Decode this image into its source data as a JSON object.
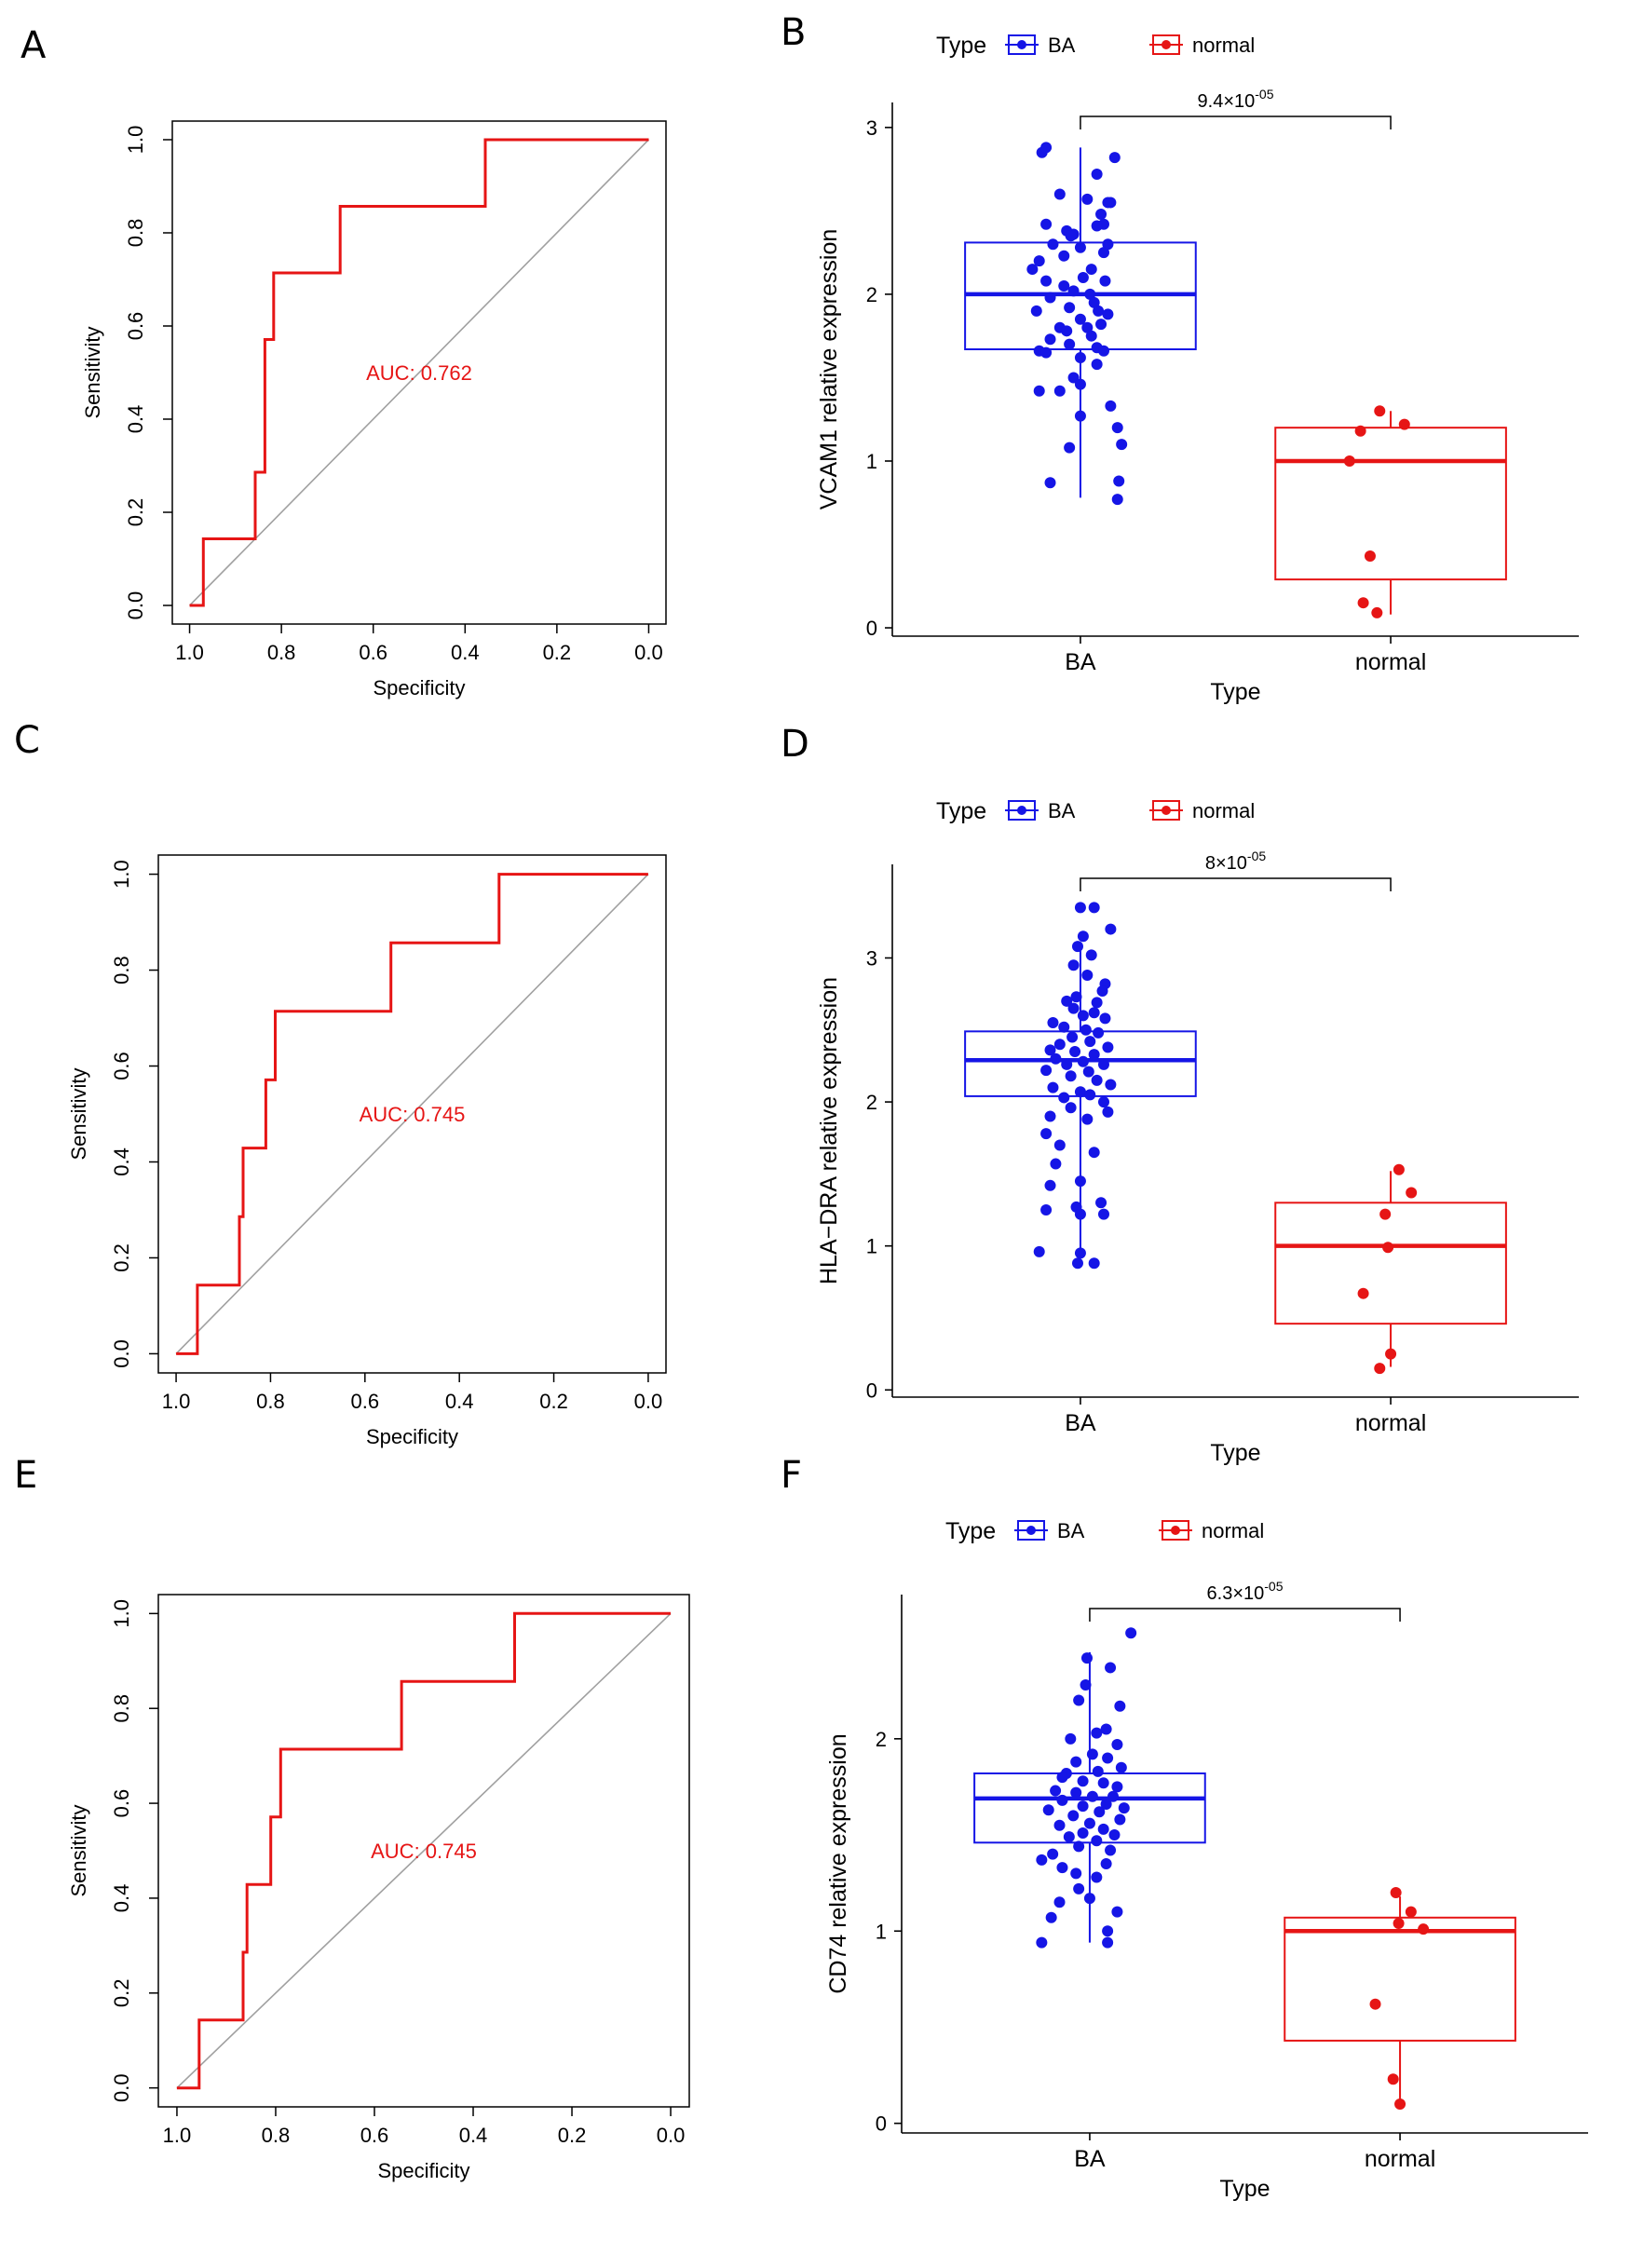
{
  "panels": [
    {
      "letter": "A"
    },
    {
      "letter": "B"
    },
    {
      "letter": "C"
    },
    {
      "letter": "D"
    },
    {
      "letter": "E"
    },
    {
      "letter": "F"
    }
  ],
  "colors": {
    "ba": "#1515e6",
    "normal": "#e61515",
    "roc": "#e61515",
    "diag": "#a0a0a0"
  },
  "chart_data": [
    {
      "panel": "A",
      "type": "line",
      "subtype": "roc",
      "xlabel": "Specificity",
      "ylabel": "Sensitivity",
      "xlim": [
        1.0,
        0.0
      ],
      "ylim": [
        0.0,
        1.0
      ],
      "xticks": [
        "1.0",
        "0.8",
        "0.6",
        "0.4",
        "0.2",
        "0.0"
      ],
      "yticks": [
        "0.0",
        "0.2",
        "0.4",
        "0.6",
        "0.8",
        "1.0"
      ],
      "auc_label": "AUC: 0.762",
      "roc": [
        [
          1.0,
          0.0
        ],
        [
          0.97,
          0.0
        ],
        [
          0.97,
          0.143
        ],
        [
          0.857,
          0.143
        ],
        [
          0.857,
          0.286
        ],
        [
          0.836,
          0.286
        ],
        [
          0.836,
          0.571
        ],
        [
          0.817,
          0.571
        ],
        [
          0.817,
          0.714
        ],
        [
          0.672,
          0.714
        ],
        [
          0.672,
          0.857
        ],
        [
          0.356,
          0.857
        ],
        [
          0.356,
          1.0
        ],
        [
          0.0,
          1.0
        ]
      ]
    },
    {
      "panel": "B",
      "type": "box",
      "subtype": "boxplot-jitter",
      "legend_title": "Type",
      "legend": [
        "BA",
        "normal"
      ],
      "categories": [
        "BA",
        "normal"
      ],
      "xlabel": "Type",
      "ylabel": "VCAM1 relative expression",
      "ylim": [
        -0.05,
        3.15
      ],
      "yticks": [
        "0",
        "1",
        "2",
        "3"
      ],
      "pvalue_label": "9.4×10",
      "pvalue_exp": "-05",
      "boxes": [
        {
          "q1": 1.67,
          "median": 2.0,
          "q3": 2.31,
          "wlo": 0.78,
          "whi": 2.88
        },
        {
          "q1": 0.29,
          "median": 1.0,
          "q3": 1.2,
          "wlo": 0.08,
          "whi": 1.3
        }
      ],
      "points": [
        [
          [
            -0.28,
            2.85
          ],
          [
            -0.25,
            2.88
          ],
          [
            0.12,
            2.72
          ],
          [
            0.25,
            2.82
          ],
          [
            -0.15,
            2.6
          ],
          [
            0.05,
            2.57
          ],
          [
            0.22,
            2.55
          ],
          [
            0.2,
            2.55
          ],
          [
            0.15,
            2.48
          ],
          [
            -0.25,
            2.42
          ],
          [
            0.17,
            2.42
          ],
          [
            0.12,
            2.41
          ],
          [
            -0.1,
            2.38
          ],
          [
            -0.05,
            2.36
          ],
          [
            -0.07,
            2.35
          ],
          [
            0.2,
            2.3
          ],
          [
            -0.2,
            2.3
          ],
          [
            0.0,
            2.28
          ],
          [
            0.17,
            2.25
          ],
          [
            -0.12,
            2.23
          ],
          [
            -0.3,
            2.2
          ],
          [
            0.08,
            2.15
          ],
          [
            -0.35,
            2.15
          ],
          [
            0.02,
            2.1
          ],
          [
            0.18,
            2.08
          ],
          [
            -0.25,
            2.08
          ],
          [
            -0.12,
            2.05
          ],
          [
            -0.05,
            2.02
          ],
          [
            0.07,
            2.0
          ],
          [
            -0.22,
            1.98
          ],
          [
            0.1,
            1.95
          ],
          [
            -0.08,
            1.92
          ],
          [
            0.13,
            1.9
          ],
          [
            -0.32,
            1.9
          ],
          [
            0.2,
            1.88
          ],
          [
            0.0,
            1.85
          ],
          [
            0.15,
            1.82
          ],
          [
            -0.15,
            1.8
          ],
          [
            0.05,
            1.8
          ],
          [
            -0.1,
            1.78
          ],
          [
            0.08,
            1.75
          ],
          [
            -0.22,
            1.73
          ],
          [
            -0.08,
            1.7
          ],
          [
            0.12,
            1.68
          ],
          [
            -0.3,
            1.66
          ],
          [
            0.17,
            1.66
          ],
          [
            -0.25,
            1.65
          ],
          [
            0.0,
            1.62
          ],
          [
            0.12,
            1.58
          ],
          [
            -0.05,
            1.5
          ],
          [
            0.0,
            1.46
          ],
          [
            -0.3,
            1.42
          ],
          [
            -0.15,
            1.42
          ],
          [
            0.22,
            1.33
          ],
          [
            0.27,
            1.2
          ],
          [
            0.0,
            1.27
          ],
          [
            0.3,
            1.1
          ],
          [
            -0.08,
            1.08
          ],
          [
            0.28,
            0.88
          ],
          [
            -0.22,
            0.87
          ],
          [
            0.27,
            0.77
          ]
        ],
        [
          [
            -0.08,
            1.3
          ],
          [
            -0.22,
            1.18
          ],
          [
            0.1,
            1.22
          ],
          [
            -0.3,
            1.0
          ],
          [
            -0.15,
            0.43
          ],
          [
            -0.2,
            0.15
          ],
          [
            -0.1,
            0.09
          ]
        ]
      ]
    },
    {
      "panel": "C",
      "type": "line",
      "subtype": "roc",
      "xlabel": "Specificity",
      "ylabel": "Sensitivity",
      "xlim": [
        1.0,
        0.0
      ],
      "ylim": [
        0.0,
        1.0
      ],
      "xticks": [
        "1.0",
        "0.8",
        "0.6",
        "0.4",
        "0.2",
        "0.0"
      ],
      "yticks": [
        "0.0",
        "0.2",
        "0.4",
        "0.6",
        "0.8",
        "1.0"
      ],
      "auc_label": "AUC: 0.745",
      "roc": [
        [
          1.0,
          0.0
        ],
        [
          0.955,
          0.0
        ],
        [
          0.955,
          0.143
        ],
        [
          0.866,
          0.143
        ],
        [
          0.866,
          0.286
        ],
        [
          0.858,
          0.286
        ],
        [
          0.858,
          0.429
        ],
        [
          0.81,
          0.429
        ],
        [
          0.81,
          0.571
        ],
        [
          0.79,
          0.571
        ],
        [
          0.79,
          0.714
        ],
        [
          0.545,
          0.714
        ],
        [
          0.545,
          0.857
        ],
        [
          0.316,
          0.857
        ],
        [
          0.316,
          1.0
        ],
        [
          0.0,
          1.0
        ]
      ]
    },
    {
      "panel": "D",
      "type": "box",
      "subtype": "boxplot-jitter",
      "legend_title": "Type",
      "legend": [
        "BA",
        "normal"
      ],
      "categories": [
        "BA",
        "normal"
      ],
      "xlabel": "Type",
      "ylabel": "HLA−DRA relative expression",
      "ylim": [
        -0.05,
        3.65
      ],
      "yticks": [
        "0",
        "1",
        "2",
        "3"
      ],
      "pvalue_label": "8×10",
      "pvalue_exp": "-05",
      "boxes": [
        {
          "q1": 2.04,
          "median": 2.29,
          "q3": 2.49,
          "wlo": 0.92,
          "whi": 3.1
        },
        {
          "q1": 0.46,
          "median": 1.0,
          "q3": 1.3,
          "wlo": 0.16,
          "whi": 1.52
        }
      ],
      "points": [
        [
          [
            0.0,
            3.35
          ],
          [
            0.1,
            3.35
          ],
          [
            0.22,
            3.2
          ],
          [
            0.02,
            3.15
          ],
          [
            -0.02,
            3.08
          ],
          [
            0.08,
            3.02
          ],
          [
            -0.05,
            2.95
          ],
          [
            0.05,
            2.88
          ],
          [
            0.18,
            2.82
          ],
          [
            0.16,
            2.77
          ],
          [
            -0.03,
            2.73
          ],
          [
            0.12,
            2.69
          ],
          [
            -0.1,
            2.7
          ],
          [
            -0.05,
            2.65
          ],
          [
            0.1,
            2.62
          ],
          [
            0.02,
            2.6
          ],
          [
            0.18,
            2.58
          ],
          [
            -0.2,
            2.55
          ],
          [
            -0.12,
            2.52
          ],
          [
            0.04,
            2.5
          ],
          [
            0.13,
            2.48
          ],
          [
            -0.06,
            2.45
          ],
          [
            0.07,
            2.42
          ],
          [
            -0.15,
            2.4
          ],
          [
            0.2,
            2.38
          ],
          [
            -0.22,
            2.36
          ],
          [
            -0.04,
            2.35
          ],
          [
            0.1,
            2.33
          ],
          [
            -0.18,
            2.3
          ],
          [
            0.02,
            2.28
          ],
          [
            0.17,
            2.26
          ],
          [
            -0.1,
            2.26
          ],
          [
            -0.25,
            2.22
          ],
          [
            0.06,
            2.21
          ],
          [
            -0.07,
            2.18
          ],
          [
            0.12,
            2.15
          ],
          [
            0.22,
            2.12
          ],
          [
            -0.2,
            2.1
          ],
          [
            0.0,
            2.07
          ],
          [
            0.07,
            2.05
          ],
          [
            -0.12,
            2.03
          ],
          [
            0.17,
            2.0
          ],
          [
            -0.07,
            1.96
          ],
          [
            0.2,
            1.93
          ],
          [
            -0.22,
            1.9
          ],
          [
            0.05,
            1.88
          ],
          [
            -0.25,
            1.78
          ],
          [
            -0.15,
            1.7
          ],
          [
            0.1,
            1.65
          ],
          [
            -0.18,
            1.57
          ],
          [
            -0.22,
            1.42
          ],
          [
            0.0,
            1.45
          ],
          [
            0.15,
            1.3
          ],
          [
            -0.25,
            1.25
          ],
          [
            -0.03,
            1.27
          ],
          [
            0.0,
            1.22
          ],
          [
            0.17,
            1.22
          ],
          [
            -0.3,
            0.96
          ],
          [
            0.0,
            0.95
          ],
          [
            0.1,
            0.88
          ],
          [
            -0.02,
            0.88
          ]
        ],
        [
          [
            0.06,
            1.53
          ],
          [
            0.15,
            1.37
          ],
          [
            -0.04,
            1.22
          ],
          [
            -0.02,
            0.99
          ],
          [
            -0.2,
            0.67
          ],
          [
            0.0,
            0.25
          ],
          [
            -0.08,
            0.15
          ]
        ]
      ]
    },
    {
      "panel": "E",
      "type": "line",
      "subtype": "roc",
      "xlabel": "Specificity",
      "ylabel": "Sensitivity",
      "xlim": [
        1.0,
        0.0
      ],
      "ylim": [
        0.0,
        1.0
      ],
      "xticks": [
        "1.0",
        "0.8",
        "0.6",
        "0.4",
        "0.2",
        "0.0"
      ],
      "yticks": [
        "0.0",
        "0.2",
        "0.4",
        "0.6",
        "0.8",
        "1.0"
      ],
      "auc_label": "AUC: 0.745",
      "roc": [
        [
          1.0,
          0.0
        ],
        [
          0.955,
          0.0
        ],
        [
          0.955,
          0.143
        ],
        [
          0.866,
          0.143
        ],
        [
          0.866,
          0.286
        ],
        [
          0.858,
          0.286
        ],
        [
          0.858,
          0.429
        ],
        [
          0.81,
          0.429
        ],
        [
          0.81,
          0.571
        ],
        [
          0.79,
          0.571
        ],
        [
          0.79,
          0.714
        ],
        [
          0.545,
          0.714
        ],
        [
          0.545,
          0.857
        ],
        [
          0.316,
          0.857
        ],
        [
          0.316,
          1.0
        ],
        [
          0.0,
          1.0
        ]
      ]
    },
    {
      "panel": "F",
      "type": "box",
      "subtype": "boxplot-jitter",
      "legend_title": "Type",
      "legend": [
        "BA",
        "normal"
      ],
      "categories": [
        "BA",
        "normal"
      ],
      "xlabel": "Type",
      "ylabel": "CD74 relative expression",
      "ylim": [
        -0.05,
        2.75
      ],
      "yticks": [
        "0",
        "1",
        "2"
      ],
      "pvalue_label": "6.3×10",
      "pvalue_exp": "-05",
      "boxes": [
        {
          "q1": 1.46,
          "median": 1.69,
          "q3": 1.82,
          "wlo": 0.94,
          "whi": 2.45
        },
        {
          "q1": 0.43,
          "median": 1.0,
          "q3": 1.07,
          "wlo": 0.1,
          "whi": 1.18
        }
      ],
      "points": [
        [
          [
            0.3,
            2.55
          ],
          [
            -0.02,
            2.42
          ],
          [
            0.15,
            2.37
          ],
          [
            -0.03,
            2.28
          ],
          [
            -0.08,
            2.2
          ],
          [
            0.22,
            2.17
          ],
          [
            0.12,
            2.05
          ],
          [
            0.05,
            2.03
          ],
          [
            -0.14,
            2.0
          ],
          [
            0.2,
            1.97
          ],
          [
            0.02,
            1.92
          ],
          [
            0.13,
            1.9
          ],
          [
            -0.1,
            1.88
          ],
          [
            0.23,
            1.85
          ],
          [
            0.06,
            1.83
          ],
          [
            -0.17,
            1.82
          ],
          [
            -0.2,
            1.8
          ],
          [
            -0.05,
            1.78
          ],
          [
            0.1,
            1.77
          ],
          [
            0.2,
            1.75
          ],
          [
            -0.25,
            1.73
          ],
          [
            -0.1,
            1.72
          ],
          [
            0.17,
            1.7
          ],
          [
            0.02,
            1.7
          ],
          [
            -0.2,
            1.68
          ],
          [
            0.12,
            1.66
          ],
          [
            -0.05,
            1.65
          ],
          [
            0.25,
            1.64
          ],
          [
            -0.3,
            1.63
          ],
          [
            0.07,
            1.62
          ],
          [
            -0.12,
            1.6
          ],
          [
            0.22,
            1.58
          ],
          [
            0.0,
            1.56
          ],
          [
            -0.22,
            1.55
          ],
          [
            0.1,
            1.53
          ],
          [
            -0.05,
            1.51
          ],
          [
            0.18,
            1.5
          ],
          [
            -0.15,
            1.49
          ],
          [
            0.05,
            1.47
          ],
          [
            -0.08,
            1.44
          ],
          [
            0.15,
            1.42
          ],
          [
            -0.27,
            1.4
          ],
          [
            -0.35,
            1.37
          ],
          [
            0.12,
            1.35
          ],
          [
            -0.2,
            1.33
          ],
          [
            -0.1,
            1.3
          ],
          [
            0.05,
            1.28
          ],
          [
            -0.08,
            1.22
          ],
          [
            0.0,
            1.17
          ],
          [
            -0.22,
            1.15
          ],
          [
            0.2,
            1.1
          ],
          [
            -0.28,
            1.07
          ],
          [
            0.13,
            1.0
          ],
          [
            -0.35,
            0.94
          ],
          [
            0.13,
            0.94
          ]
        ],
        [
          [
            -0.03,
            1.2
          ],
          [
            0.08,
            1.1
          ],
          [
            0.17,
            1.01
          ],
          [
            -0.01,
            1.04
          ],
          [
            -0.18,
            0.62
          ],
          [
            -0.05,
            0.23
          ],
          [
            0.0,
            0.1
          ]
        ]
      ]
    }
  ]
}
